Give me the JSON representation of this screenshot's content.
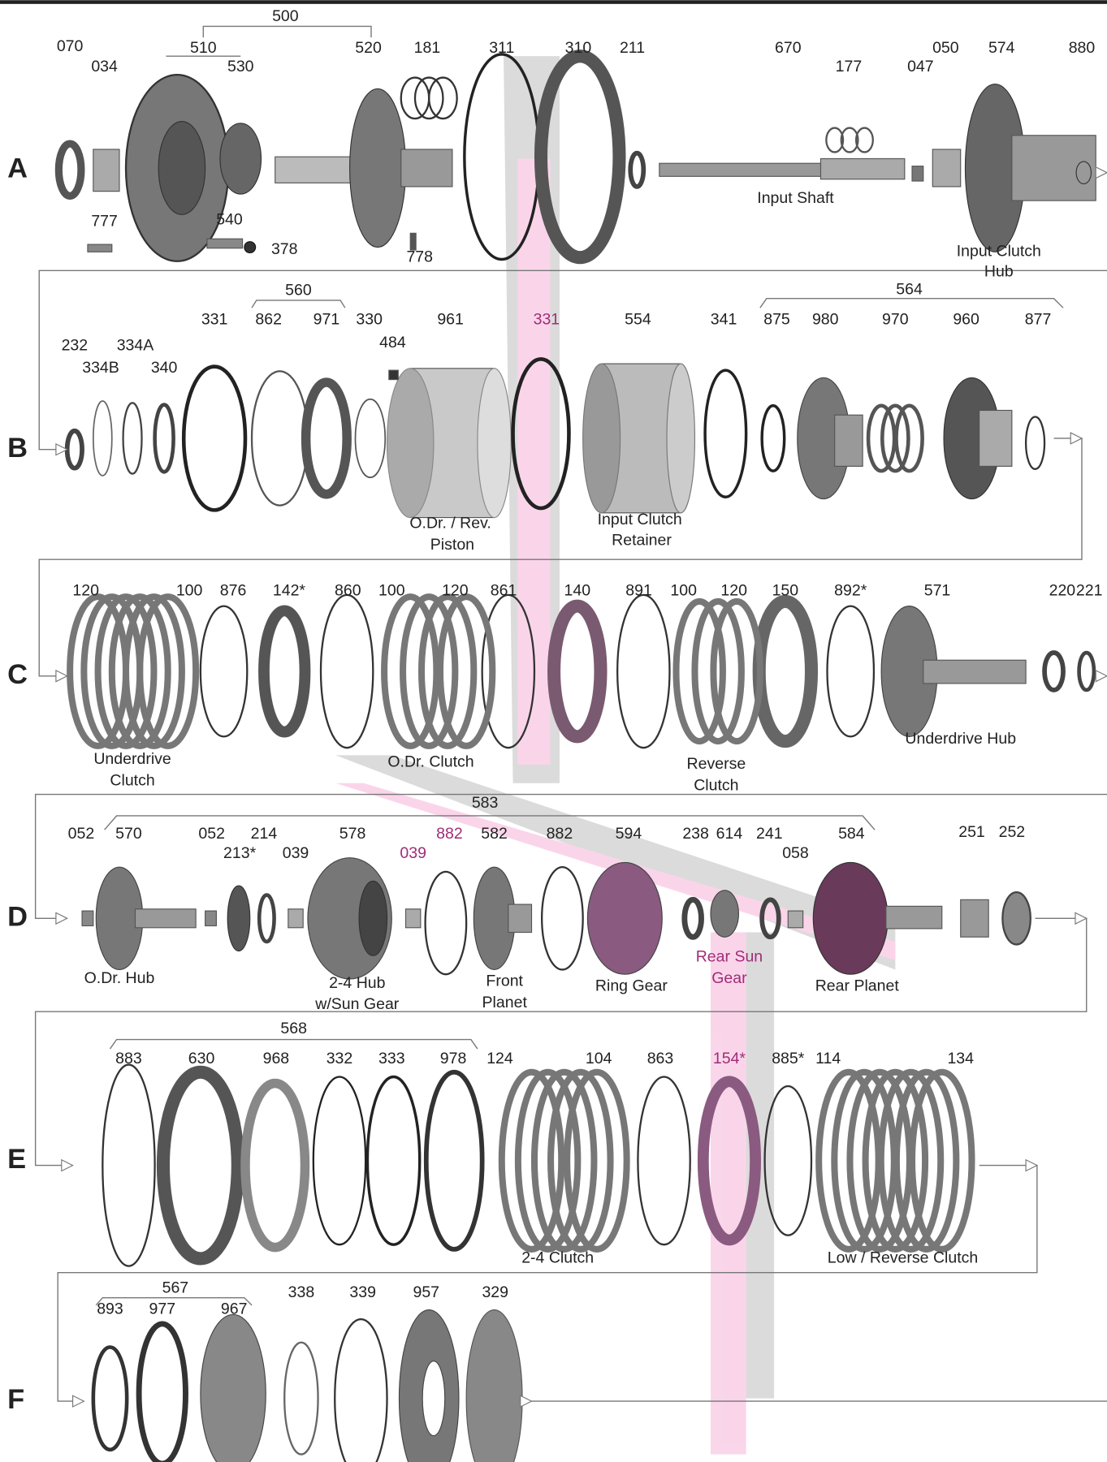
{
  "rows": [
    {
      "letter": "A",
      "parts": [
        "070",
        "034",
        "510",
        "500",
        "530",
        "520",
        "181",
        "311",
        "310",
        "211",
        "670",
        "177",
        "047",
        "050",
        "574",
        "880",
        "777",
        "540",
        "378",
        "778"
      ],
      "captions": [
        "Input Shaft",
        "Input Clutch",
        "Hub"
      ]
    },
    {
      "letter": "B",
      "parts": [
        "232",
        "334B",
        "334A",
        "340",
        "331",
        "560",
        "862",
        "971",
        "330",
        "484",
        "961",
        "331",
        "554",
        "341",
        "564",
        "875",
        "980",
        "970",
        "960",
        "877"
      ],
      "captions": [
        "O.Dr. / Rev.",
        "Piston",
        "Input Clutch",
        "Retainer"
      ]
    },
    {
      "letter": "C",
      "parts": [
        "120",
        "100",
        "876",
        "142*",
        "860",
        "100",
        "120",
        "861",
        "140",
        "891",
        "100",
        "120",
        "150",
        "892*",
        "571",
        "220",
        "221"
      ],
      "captions": [
        "Underdrive",
        "Clutch",
        "O.Dr. Clutch",
        "Reverse",
        "Clutch",
        "Underdrive Hub"
      ]
    },
    {
      "letter": "D",
      "parts": [
        "583",
        "052",
        "570",
        "052",
        "213*",
        "214",
        "039",
        "578",
        "039",
        "882",
        "582",
        "882",
        "594",
        "238",
        "614",
        "241",
        "058",
        "584",
        "251",
        "252"
      ],
      "captions": [
        "O.Dr. Hub",
        "2-4 Hub",
        "w/Sun Gear",
        "Front",
        "Planet",
        "Ring Gear",
        "Rear Sun",
        "Gear",
        "Rear Planet"
      ]
    },
    {
      "letter": "E",
      "parts": [
        "568",
        "883",
        "630",
        "968",
        "332",
        "333",
        "978",
        "124",
        "104",
        "863",
        "154*",
        "885*",
        "114",
        "134"
      ],
      "captions": [
        "2-4 Clutch",
        "Low / Reverse Clutch"
      ]
    },
    {
      "letter": "F",
      "parts": [
        "567",
        "893",
        "977",
        "967",
        "338",
        "339",
        "957",
        "329"
      ],
      "captions": []
    }
  ]
}
